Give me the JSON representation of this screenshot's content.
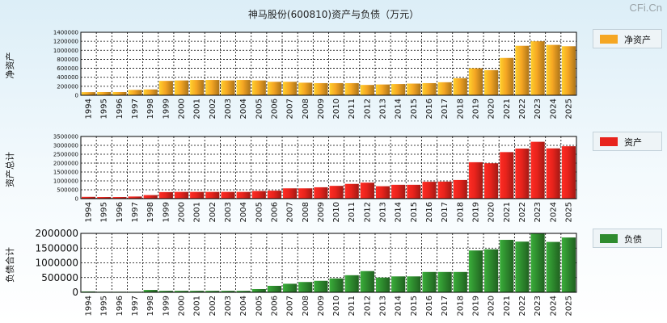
{
  "page": {
    "title": "神马股份(600810)资产与负债（万元）",
    "watermark": "CFi.Cn"
  },
  "chart_data": [
    {
      "type": "bar",
      "title": "神马股份(600810)资产与负债（万元）",
      "ylabel": "净资产",
      "legend": "净资产",
      "color": "#f5a623",
      "ylim": [
        0,
        1400000
      ],
      "yticks": [
        0,
        200000,
        400000,
        600000,
        800000,
        1000000,
        1200000,
        1400000
      ],
      "categories": [
        "1994",
        "1995",
        "1996",
        "1997",
        "1998",
        "1999",
        "2000",
        "2001",
        "2002",
        "2003",
        "2004",
        "2005",
        "2006",
        "2007",
        "2008",
        "2009",
        "2010",
        "2011",
        "2012",
        "2013",
        "2014",
        "2015",
        "2016",
        "2017",
        "2018",
        "2019",
        "2020",
        "2021",
        "2022",
        "2023",
        "2024",
        "2025"
      ],
      "values": [
        70000,
        72000,
        72000,
        120000,
        130000,
        320000,
        330000,
        340000,
        340000,
        330000,
        340000,
        330000,
        300000,
        300000,
        280000,
        270000,
        270000,
        270000,
        230000,
        240000,
        250000,
        260000,
        270000,
        290000,
        380000,
        600000,
        560000,
        830000,
        1100000,
        1200000,
        1120000,
        1090000
      ]
    },
    {
      "type": "bar",
      "ylabel": "资产总计",
      "legend": "资产",
      "color": "#e8231c",
      "ylim": [
        0,
        3500000
      ],
      "yticks": [
        0,
        500000,
        1000000,
        1500000,
        2000000,
        2500000,
        3000000,
        3500000
      ],
      "categories": [
        "1994",
        "1995",
        "1996",
        "1997",
        "1998",
        "1999",
        "2000",
        "2001",
        "2002",
        "2003",
        "2004",
        "2005",
        "2006",
        "2007",
        "2008",
        "2009",
        "2010",
        "2011",
        "2012",
        "2013",
        "2014",
        "2015",
        "2016",
        "2017",
        "2018",
        "2019",
        "2020",
        "2021",
        "2022",
        "2023",
        "2024",
        "2025"
      ],
      "values": [
        100000,
        90000,
        90000,
        120000,
        200000,
        370000,
        380000,
        380000,
        380000,
        380000,
        380000,
        430000,
        450000,
        580000,
        580000,
        640000,
        720000,
        830000,
        900000,
        700000,
        780000,
        780000,
        950000,
        960000,
        1050000,
        2050000,
        1990000,
        2620000,
        2820000,
        3200000,
        2830000,
        2950000
      ]
    },
    {
      "type": "bar",
      "ylabel": "负债合计",
      "legend": "负债",
      "color": "#2e8b2e",
      "ylim": [
        0,
        2000000
      ],
      "yticks": [
        0,
        500000,
        1000000,
        1500000,
        2000000
      ],
      "categories": [
        "1994",
        "1995",
        "1996",
        "1997",
        "1998",
        "1999",
        "2000",
        "2001",
        "2002",
        "2003",
        "2004",
        "2005",
        "2006",
        "2007",
        "2008",
        "2009",
        "2010",
        "2011",
        "2012",
        "2013",
        "2014",
        "2015",
        "2016",
        "2017",
        "2018",
        "2019",
        "2020",
        "2021",
        "2022",
        "2023",
        "2024",
        "2025"
      ],
      "values": [
        30000,
        20000,
        20000,
        20000,
        80000,
        50000,
        50000,
        50000,
        50000,
        50000,
        50000,
        110000,
        220000,
        290000,
        350000,
        390000,
        470000,
        580000,
        720000,
        500000,
        540000,
        540000,
        690000,
        690000,
        690000,
        1420000,
        1460000,
        1780000,
        1720000,
        2000000,
        1710000,
        1860000
      ]
    }
  ]
}
